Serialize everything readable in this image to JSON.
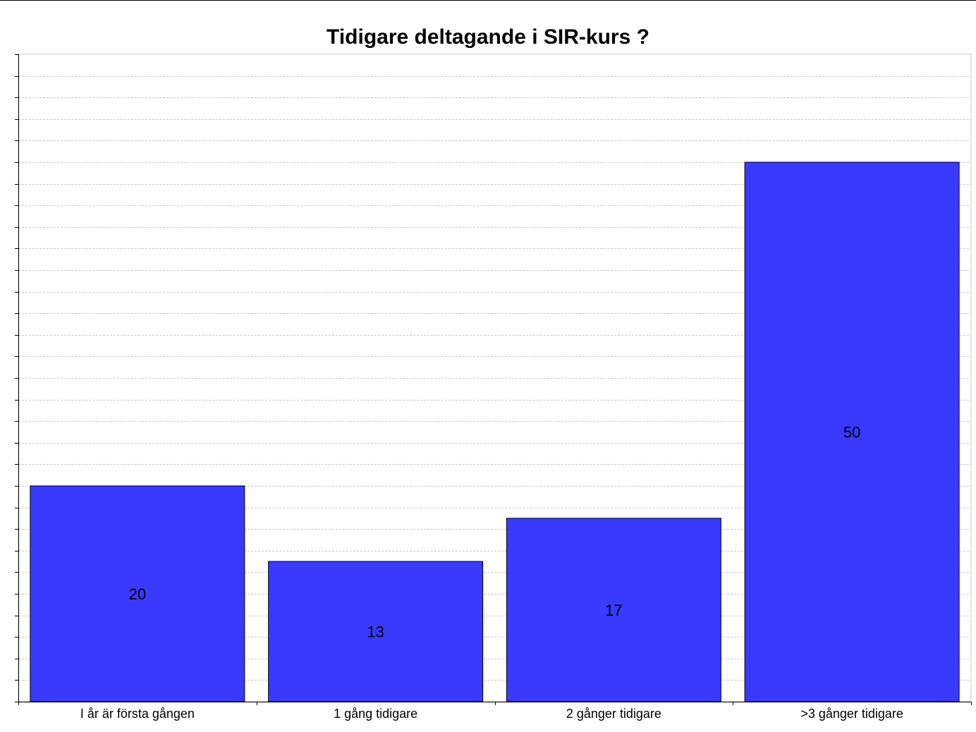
{
  "chart_data": {
    "type": "bar",
    "title": "Tidigare deltagande i SIR-kurs ?",
    "categories": [
      "I år är första gången",
      "1 gång tidigare",
      "2 gånger tidigare",
      ">3 gånger tidigare"
    ],
    "values": [
      20,
      13,
      17,
      50
    ],
    "xlabel": "",
    "ylabel": "",
    "ylim": [
      0,
      60
    ],
    "grid": true,
    "legend": "none",
    "bar_color": "#3a3aff",
    "grid_color": "#c8c8c8"
  }
}
